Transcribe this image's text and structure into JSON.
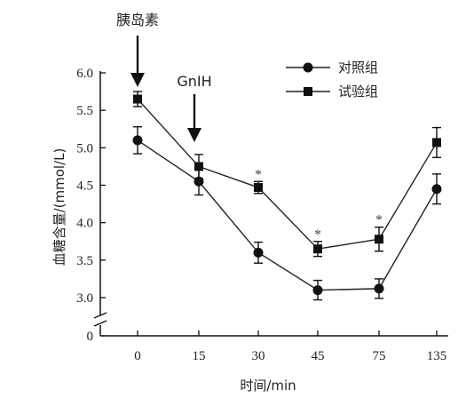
{
  "chart_data": {
    "type": "line",
    "xlabel": "时间/min",
    "ylabel": "血糖含量/(mmol/L)",
    "categories": [
      "0",
      "15",
      "30",
      "45",
      "75",
      "135"
    ],
    "yticks": [
      "0",
      "3.0",
      "3.5",
      "4.0",
      "4.5",
      "5.0",
      "5.5",
      "6.0"
    ],
    "ylim": [
      2.5,
      6.0
    ],
    "axis_break": true,
    "grid": false,
    "legend_position": "top-right",
    "series": [
      {
        "name": "对照组",
        "marker": "circle",
        "values": [
          5.1,
          4.55,
          3.6,
          3.1,
          3.12,
          4.45
        ],
        "errors": [
          0.18,
          0.18,
          0.14,
          0.13,
          0.13,
          0.2
        ]
      },
      {
        "name": "试验组",
        "marker": "square",
        "values": [
          5.65,
          4.75,
          4.47,
          3.65,
          3.78,
          5.07
        ],
        "errors": [
          0.1,
          0.16,
          0.08,
          0.1,
          0.16,
          0.2
        ]
      }
    ],
    "significance": {
      "symbol": "*",
      "categories": [
        "30",
        "45",
        "75"
      ]
    },
    "annotations": [
      {
        "text": "胰岛素",
        "category": "0"
      },
      {
        "text": "GnIH",
        "category": "15"
      }
    ]
  }
}
